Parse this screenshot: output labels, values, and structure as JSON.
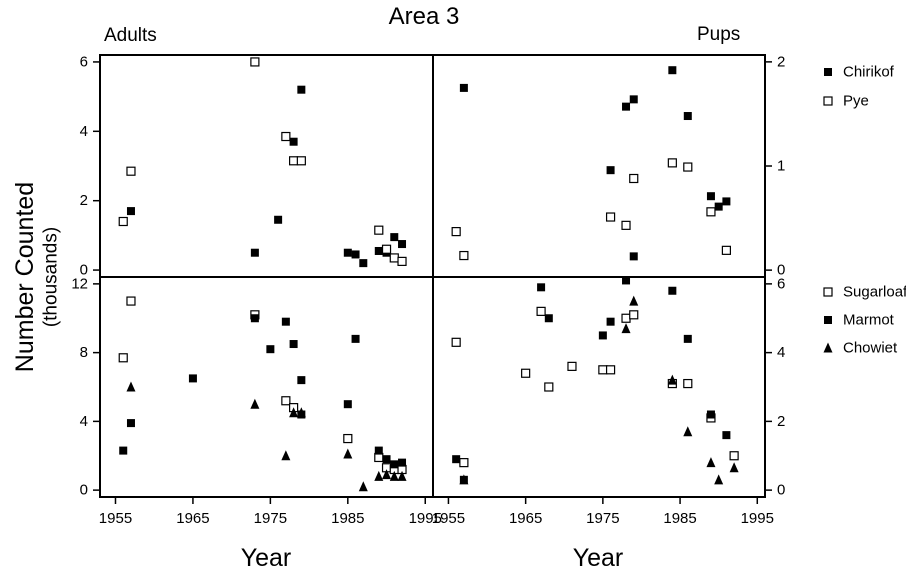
{
  "figure": {
    "title": "Area 3",
    "ylabel": "Number Counted",
    "ylabel_sub": "(thousands)",
    "xlabel_left": "Year",
    "xlabel_right": "Year",
    "label_adults": "Adults",
    "label_pups": "Pups"
  },
  "legends": {
    "top": [
      {
        "name": "Chirikof",
        "marker": "filled-square"
      },
      {
        "name": "Pye",
        "marker": "open-square"
      }
    ],
    "bottom": [
      {
        "name": "Sugarloaf",
        "marker": "open-square"
      },
      {
        "name": "Marmot",
        "marker": "filled-square"
      },
      {
        "name": "Chowiet",
        "marker": "filled-triangle"
      }
    ]
  },
  "chart_data": [
    {
      "type": "scatter",
      "panel": "adults-top",
      "xlim": [
        1953,
        1996
      ],
      "ylim": [
        -0.2,
        6.2
      ],
      "yticks": [
        0,
        2,
        4,
        6
      ],
      "tick_side": "left",
      "series": [
        {
          "name": "Chirikof",
          "marker": "filled-square",
          "points": [
            [
              1956,
              1.4
            ],
            [
              1957,
              1.7
            ],
            [
              1973,
              0.5
            ],
            [
              1976,
              1.45
            ],
            [
              1978,
              3.7
            ],
            [
              1979,
              5.2
            ],
            [
              1985,
              0.5
            ],
            [
              1986,
              0.45
            ],
            [
              1987,
              0.2
            ],
            [
              1989,
              0.55
            ],
            [
              1990,
              0.5
            ],
            [
              1991,
              0.95
            ],
            [
              1992,
              0.75
            ]
          ]
        },
        {
          "name": "Pye",
          "marker": "open-square",
          "points": [
            [
              1956,
              1.4
            ],
            [
              1957,
              2.85
            ],
            [
              1973,
              6.0
            ],
            [
              1977,
              3.85
            ],
            [
              1978,
              3.15
            ],
            [
              1979,
              3.15
            ],
            [
              1989,
              1.15
            ],
            [
              1990,
              0.6
            ],
            [
              1991,
              0.35
            ],
            [
              1992,
              0.25
            ]
          ]
        }
      ]
    },
    {
      "type": "scatter",
      "panel": "pups-top",
      "xlim": [
        1953,
        1996
      ],
      "ylim": [
        -0.066,
        2.066
      ],
      "yticks": [
        0,
        1,
        2
      ],
      "tick_side": "right",
      "series": [
        {
          "name": "Chirikof",
          "marker": "filled-square",
          "points": [
            [
              1957,
              1.75
            ],
            [
              1976,
              0.96
            ],
            [
              1978,
              1.57
            ],
            [
              1979,
              1.64
            ],
            [
              1984,
              1.92
            ],
            [
              1986,
              1.48
            ],
            [
              1989,
              0.71
            ],
            [
              1990,
              0.61
            ],
            [
              1991,
              0.66
            ]
          ]
        },
        {
          "name": "Pye",
          "marker": "open-square",
          "points": [
            [
              1956,
              0.37
            ],
            [
              1957,
              0.14
            ],
            [
              1976,
              0.51
            ],
            [
              1978,
              0.43
            ],
            [
              1979,
              0.88
            ],
            [
              1984,
              1.03
            ],
            [
              1986,
              0.99
            ],
            [
              1989,
              0.56
            ],
            [
              1991,
              0.19
            ]
          ]
        }
      ]
    },
    {
      "type": "scatter",
      "panel": "adults-bottom",
      "xlim": [
        1953,
        1996
      ],
      "ylim": [
        -0.4,
        12.4
      ],
      "yticks": [
        0,
        4,
        8,
        12
      ],
      "tick_side": "left",
      "series": [
        {
          "name": "Sugarloaf",
          "marker": "open-square",
          "points": [
            [
              1956,
              7.7
            ],
            [
              1957,
              11.0
            ],
            [
              1973,
              10.2
            ],
            [
              1977,
              5.2
            ],
            [
              1978,
              4.8
            ],
            [
              1985,
              3.0
            ],
            [
              1989,
              1.9
            ],
            [
              1990,
              1.3
            ],
            [
              1991,
              1.2
            ],
            [
              1992,
              1.2
            ]
          ]
        },
        {
          "name": "Marmot",
          "marker": "filled-square",
          "points": [
            [
              1956,
              2.3
            ],
            [
              1957,
              3.9
            ],
            [
              1965,
              6.5
            ],
            [
              1973,
              10.0
            ],
            [
              1975,
              8.2
            ],
            [
              1977,
              9.8
            ],
            [
              1978,
              8.5
            ],
            [
              1979,
              6.4
            ],
            [
              1979,
              4.4
            ],
            [
              1985,
              5.0
            ],
            [
              1986,
              8.8
            ],
            [
              1989,
              2.3
            ],
            [
              1990,
              1.8
            ],
            [
              1991,
              1.5
            ],
            [
              1992,
              1.6
            ]
          ]
        },
        {
          "name": "Chowiet",
          "marker": "filled-triangle",
          "points": [
            [
              1957,
              6.0
            ],
            [
              1973,
              5.0
            ],
            [
              1977,
              2.0
            ],
            [
              1978,
              4.5
            ],
            [
              1979,
              4.5
            ],
            [
              1985,
              2.1
            ],
            [
              1987,
              0.2
            ],
            [
              1989,
              0.8
            ],
            [
              1990,
              0.9
            ],
            [
              1991,
              0.8
            ],
            [
              1992,
              0.8
            ]
          ]
        }
      ]
    },
    {
      "type": "scatter",
      "panel": "pups-bottom",
      "xlim": [
        1953,
        1996
      ],
      "ylim": [
        -0.2,
        6.2
      ],
      "yticks": [
        0,
        2,
        4,
        6
      ],
      "tick_side": "right",
      "series": [
        {
          "name": "Sugarloaf",
          "marker": "open-square",
          "points": [
            [
              1956,
              4.3
            ],
            [
              1957,
              0.8
            ],
            [
              1965,
              3.4
            ],
            [
              1967,
              5.2
            ],
            [
              1968,
              3.0
            ],
            [
              1971,
              3.6
            ],
            [
              1975,
              3.5
            ],
            [
              1976,
              3.5
            ],
            [
              1978,
              5.0
            ],
            [
              1979,
              5.1
            ],
            [
              1984,
              3.1
            ],
            [
              1986,
              3.1
            ],
            [
              1989,
              2.1
            ],
            [
              1992,
              1.0
            ]
          ]
        },
        {
          "name": "Marmot",
          "marker": "filled-square",
          "points": [
            [
              1956,
              0.9
            ],
            [
              1957,
              0.3
            ],
            [
              1967,
              5.9
            ],
            [
              1968,
              5.0
            ],
            [
              1975,
              4.5
            ],
            [
              1976,
              4.9
            ],
            [
              1978,
              6.1
            ],
            [
              1979,
              6.8
            ],
            [
              1984,
              5.8
            ],
            [
              1986,
              4.4
            ],
            [
              1989,
              2.2
            ],
            [
              1991,
              1.6
            ]
          ]
        },
        {
          "name": "Chowiet",
          "marker": "filled-triangle",
          "points": [
            [
              1957,
              0.3
            ],
            [
              1978,
              4.7
            ],
            [
              1979,
              5.5
            ],
            [
              1984,
              3.2
            ],
            [
              1986,
              1.7
            ],
            [
              1989,
              0.8
            ],
            [
              1990,
              0.3
            ],
            [
              1992,
              0.65
            ]
          ]
        }
      ]
    }
  ],
  "xticks": [
    1955,
    1965,
    1975,
    1985,
    1995
  ]
}
